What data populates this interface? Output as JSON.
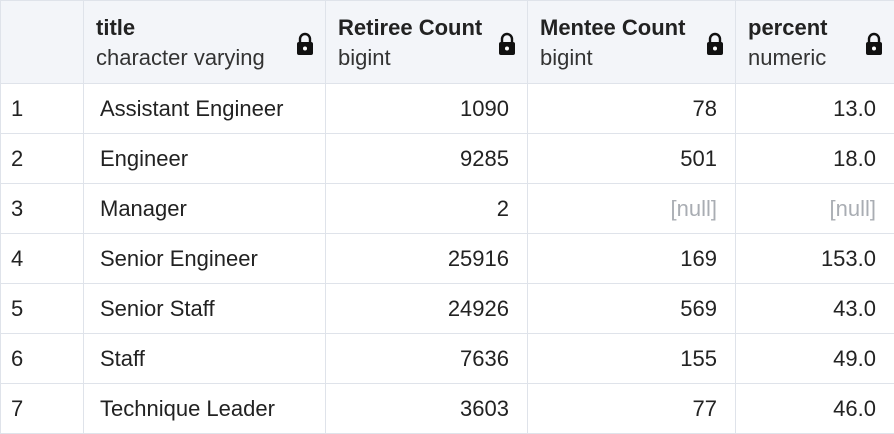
{
  "columns": [
    {
      "name": "title",
      "type": "character varying",
      "locked": true
    },
    {
      "name": "Retiree Count",
      "type": "bigint",
      "locked": true
    },
    {
      "name": "Mentee Count",
      "type": "bigint",
      "locked": true
    },
    {
      "name": "percent",
      "type": "numeric",
      "locked": true
    }
  ],
  "icons": {
    "column_lock": "lock-icon"
  },
  "colors": {
    "header_bg": "#f3f5f9",
    "grid_line": "#dfe3ea",
    "null_text": "#a9adb3"
  },
  "rows": [
    {
      "index": "1",
      "title": "Assistant Engineer",
      "retiree_count": "1090",
      "mentee_count": "78",
      "percent": "13.0"
    },
    {
      "index": "2",
      "title": "Engineer",
      "retiree_count": "9285",
      "mentee_count": "501",
      "percent": "18.0"
    },
    {
      "index": "3",
      "title": "Manager",
      "retiree_count": "2",
      "mentee_count": "[null]",
      "percent": "[null]"
    },
    {
      "index": "4",
      "title": "Senior Engineer",
      "retiree_count": "25916",
      "mentee_count": "169",
      "percent": "153.0"
    },
    {
      "index": "5",
      "title": "Senior Staff",
      "retiree_count": "24926",
      "mentee_count": "569",
      "percent": "43.0"
    },
    {
      "index": "6",
      "title": "Staff",
      "retiree_count": "7636",
      "mentee_count": "155",
      "percent": "49.0"
    },
    {
      "index": "7",
      "title": "Technique Leader",
      "retiree_count": "3603",
      "mentee_count": "77",
      "percent": "46.0"
    }
  ]
}
